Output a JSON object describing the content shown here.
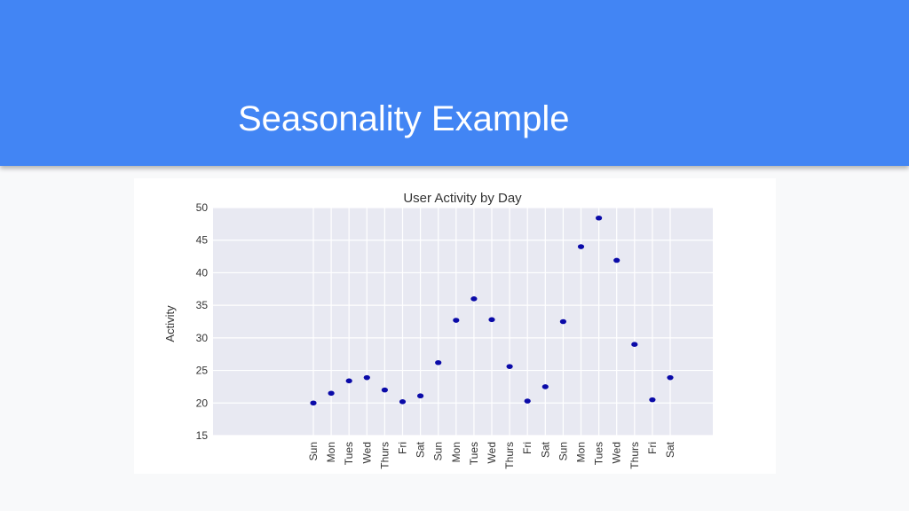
{
  "slide": {
    "title": "Seasonality Example",
    "header_color": "#4285f4"
  },
  "chart_data": {
    "type": "scatter",
    "title": "User Activity by Day",
    "xlabel": "",
    "ylabel": "Activity",
    "ylim": [
      15,
      50
    ],
    "yticks": [
      15,
      20,
      25,
      30,
      35,
      40,
      45,
      50
    ],
    "grid": true,
    "legend": "none",
    "point_color": "#0a0aa8",
    "plot_background": "#e8e9f2",
    "categories": [
      "Sun",
      "Mon",
      "Tues",
      "Wed",
      "Thurs",
      "Fri",
      "Sat",
      "Sun",
      "Mon",
      "Tues",
      "Wed",
      "Thurs",
      "Fri",
      "Sat",
      "Sun",
      "Mon",
      "Tues",
      "Wed",
      "Thurs",
      "Fri",
      "Sat"
    ],
    "values": [
      20.0,
      21.5,
      23.4,
      23.9,
      22.0,
      20.2,
      21.1,
      26.2,
      32.7,
      36.0,
      32.8,
      25.6,
      20.3,
      22.5,
      32.5,
      44.0,
      48.4,
      41.9,
      29.0,
      20.5,
      23.9
    ]
  }
}
